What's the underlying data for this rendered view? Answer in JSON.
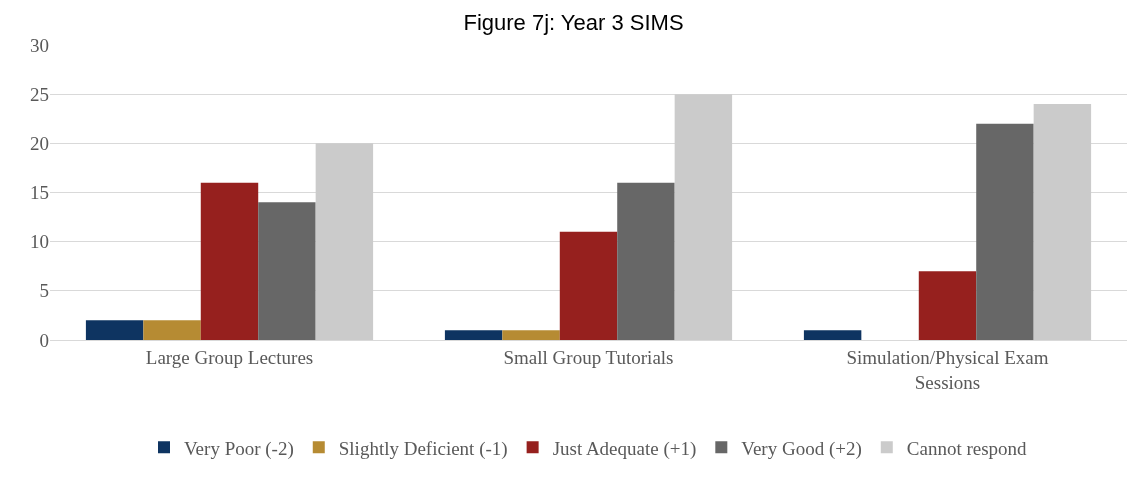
{
  "chart_data": {
    "type": "bar",
    "title": "Figure 7j: Year 3 SIMS",
    "categories": [
      "Large Group Lectures",
      "Small Group Tutorials",
      "Simulation/Physical Exam Sessions"
    ],
    "series": [
      {
        "name": "Very Poor (-2)",
        "color": "#0e3461",
        "values": [
          2,
          1,
          1
        ]
      },
      {
        "name": "Slightly Deficient (-1)",
        "color": "#b68b33",
        "values": [
          2,
          1,
          0
        ]
      },
      {
        "name": "Just Adequate (+1)",
        "color": "#96201e",
        "values": [
          16,
          11,
          7
        ]
      },
      {
        "name": "Very Good (+2)",
        "color": "#676767",
        "values": [
          14,
          16,
          22
        ]
      },
      {
        "name": "Cannot respond",
        "color": "#cbcbcb",
        "values": [
          20,
          25,
          24
        ]
      }
    ],
    "ylim": [
      0,
      30
    ],
    "yticks": [
      0,
      5,
      10,
      15,
      20,
      25,
      30
    ],
    "grid": "y",
    "legend": "bottom"
  }
}
